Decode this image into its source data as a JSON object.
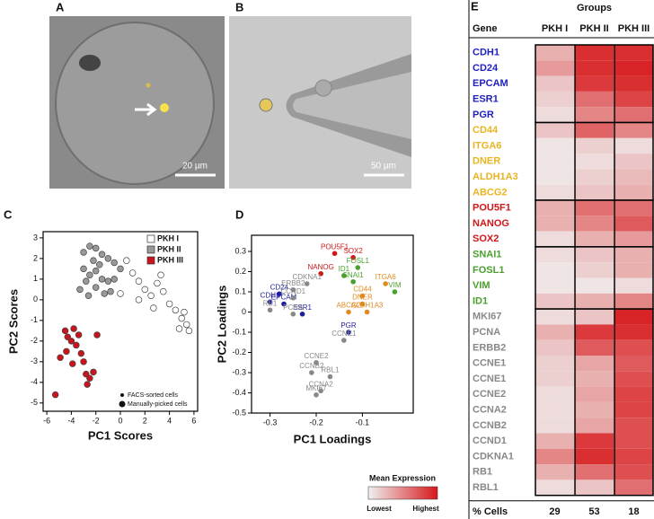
{
  "panel_labels": [
    "A",
    "B",
    "C",
    "D",
    "E"
  ],
  "images": [
    {
      "scale_bar": "20 µm"
    },
    {
      "scale_bar": "50 µm"
    }
  ],
  "chart_data": [
    {
      "type": "scatter",
      "xlabel": "PC1 Scores",
      "ylabel": "PC2 Scores",
      "xlim": [
        -6.3,
        6.3
      ],
      "ylim": [
        -5.4,
        3.3
      ],
      "xticks": [
        -6,
        -4,
        -2,
        0,
        2,
        4,
        6
      ],
      "yticks": [
        3,
        2,
        1,
        0,
        -1,
        -2,
        -3,
        -4,
        -5
      ],
      "legend": "upper right",
      "legend_notes": [
        "FACS-sorted cells",
        "Manually-picked cells"
      ],
      "series": [
        {
          "name": "PKH I",
          "color": "#ffffff",
          "x": [
            0.5,
            1,
            1.5,
            2,
            2.5,
            3,
            3.5,
            4,
            4.5,
            5,
            5.4,
            5.6,
            4.8,
            3.3,
            0,
            1.5,
            2.7,
            5.2
          ],
          "y": [
            1.9,
            1.3,
            0.9,
            0.5,
            0.2,
            0.8,
            0.4,
            -0.2,
            -0.5,
            -0.9,
            -1.2,
            -1.5,
            -1.4,
            1.2,
            0.3,
            0,
            -0.4,
            -0.6
          ]
        },
        {
          "name": "PKH II",
          "color": "#999999",
          "x": [
            -3,
            -2.5,
            -2,
            -1.5,
            -1,
            -0.5,
            -3,
            -2.5,
            -2,
            -1.5,
            -1,
            -0.5,
            0,
            -3.3,
            -2.6,
            -2,
            -1.3,
            -0.8,
            -2.2,
            -1.7,
            -2.8
          ],
          "y": [
            2.3,
            2.6,
            2.5,
            2.2,
            2,
            1.8,
            1.5,
            1.2,
            1.4,
            1,
            0.9,
            1,
            1.5,
            0.5,
            0.2,
            0.6,
            0.3,
            0.4,
            1.9,
            1.7,
            0.9
          ]
        },
        {
          "name": "PKH III",
          "color": "#c8141c",
          "x": [
            -5.3,
            -4.9,
            -4.5,
            -4.3,
            -4,
            -3.8,
            -3.6,
            -3.4,
            -3.2,
            -3,
            -2.8,
            -2.5,
            -2.2,
            -2.7,
            -1.9,
            -3.9,
            -4.4
          ],
          "y": [
            -4.6,
            -2.8,
            -1.5,
            -1.8,
            -2,
            -1.4,
            -2.2,
            -1.7,
            -2.6,
            -3,
            -3.6,
            -3.8,
            -3.5,
            -4.1,
            -1.7,
            -3.1,
            -2.5
          ]
        }
      ]
    },
    {
      "type": "scatter",
      "xlabel": "PC1 Loadings",
      "ylabel": "PC2 Loadings",
      "xlim": [
        -0.34,
        0.01
      ],
      "ylim": [
        -0.5,
        0.38
      ],
      "xticks": [
        -0.3,
        -0.2,
        -0.1
      ],
      "yticks": [
        0.3,
        0.2,
        0.1,
        0,
        -0.1,
        -0.2,
        -0.3,
        -0.4,
        -0.5
      ],
      "series": [
        {
          "color": "#1f1f9c",
          "labels": [
            "CD24",
            "CDH1",
            "EPCAM",
            "ESR1",
            "PGR"
          ],
          "x": [
            -0.28,
            -0.3,
            -0.27,
            -0.23,
            -0.13
          ],
          "y": [
            0.09,
            0.05,
            0.04,
            -0.01,
            -0.1
          ]
        },
        {
          "color": "#e08a1e",
          "labels": [
            "ITGA6",
            "CD44",
            "DNER",
            "ABCG2",
            "ALDH1A3"
          ],
          "x": [
            -0.05,
            -0.1,
            -0.1,
            -0.13,
            -0.09
          ],
          "y": [
            0.14,
            0.08,
            0.04,
            0.0,
            0.0
          ]
        },
        {
          "color": "#d01818",
          "labels": [
            "POU5F1",
            "SOX2",
            "NANOG"
          ],
          "x": [
            -0.16,
            -0.12,
            -0.19
          ],
          "y": [
            0.29,
            0.27,
            0.19
          ]
        },
        {
          "color": "#4aa02c",
          "labels": [
            "FOSL1",
            "ID1",
            "SNAI1",
            "VIM"
          ],
          "x": [
            -0.11,
            -0.14,
            -0.12,
            -0.03
          ],
          "y": [
            0.22,
            0.18,
            0.15,
            0.1
          ]
        },
        {
          "color": "#888888",
          "labels": [
            "CDKNA1",
            "ERBB2",
            "CCND1",
            "RB1",
            "PCNA",
            "CCNE1",
            "CCNE2",
            "CCNB2",
            "RBL1",
            "CCNA2",
            "MKI67"
          ],
          "x": [
            -0.22,
            -0.25,
            -0.25,
            -0.3,
            -0.25,
            -0.14,
            -0.2,
            -0.21,
            -0.17,
            -0.19,
            -0.2
          ],
          "y": [
            0.14,
            0.11,
            0.07,
            0.01,
            -0.01,
            -0.14,
            -0.25,
            -0.3,
            -0.32,
            -0.39,
            -0.41
          ]
        }
      ]
    },
    {
      "type": "heatmap",
      "title": "Groups",
      "header_left": "Gene",
      "columns": [
        "PKH I",
        "PKH II",
        "PKH III"
      ],
      "zlim": [
        0,
        1
      ],
      "low_color": "#f0f0f0",
      "high_color": "#d7191c",
      "colorbar": {
        "title": "Mean Expression",
        "low_label": "Lowest",
        "high_label": "Highest"
      },
      "footer_label": "% Cells",
      "footer_values": [
        29,
        53,
        18
      ],
      "row_groups": [
        {
          "color": "#1f1fbf",
          "genes": [
            "CDH1",
            "CD24",
            "EPCAM",
            "ESR1",
            "PGR"
          ],
          "values": [
            [
              0.3,
              0.9,
              0.9
            ],
            [
              0.4,
              0.9,
              0.95
            ],
            [
              0.2,
              0.85,
              0.9
            ],
            [
              0.15,
              0.6,
              0.8
            ],
            [
              0.1,
              0.5,
              0.6
            ]
          ]
        },
        {
          "color": "#e8b422",
          "genes": [
            "CD44",
            "ITGA6",
            "DNER",
            "ALDH1A3",
            "ABCG2"
          ],
          "values": [
            [
              0.2,
              0.65,
              0.5
            ],
            [
              0.05,
              0.15,
              0.1
            ],
            [
              0.05,
              0.1,
              0.2
            ],
            [
              0.05,
              0.15,
              0.25
            ],
            [
              0.1,
              0.2,
              0.3
            ]
          ]
        },
        {
          "color": "#d01818",
          "genes": [
            "POU5F1",
            "NANOG",
            "SOX2"
          ],
          "values": [
            [
              0.3,
              0.6,
              0.6
            ],
            [
              0.3,
              0.5,
              0.7
            ],
            [
              0.1,
              0.3,
              0.4
            ]
          ]
        },
        {
          "color": "#4aa02c",
          "genes": [
            "SNAI1",
            "FOSL1",
            "VIM",
            "ID1"
          ],
          "values": [
            [
              0.1,
              0.2,
              0.3
            ],
            [
              0.05,
              0.15,
              0.3
            ],
            [
              0.05,
              0.05,
              0.1
            ],
            [
              0.2,
              0.3,
              0.5
            ]
          ]
        },
        {
          "color": "#888888",
          "genes": [
            "MKI67",
            "PCNA",
            "ERBB2",
            "CCNE1",
            "CCNE1",
            "CCNE2",
            "CCNA2",
            "CCNB2",
            "CCND1",
            "CDKNA1",
            "RB1",
            "RBL1"
          ],
          "values": [
            [
              0.1,
              0.2,
              0.95
            ],
            [
              0.3,
              0.85,
              0.9
            ],
            [
              0.2,
              0.7,
              0.75
            ],
            [
              0.15,
              0.35,
              0.7
            ],
            [
              0.15,
              0.3,
              0.75
            ],
            [
              0.1,
              0.35,
              0.8
            ],
            [
              0.1,
              0.3,
              0.8
            ],
            [
              0.1,
              0.35,
              0.75
            ],
            [
              0.3,
              0.85,
              0.75
            ],
            [
              0.5,
              0.9,
              0.8
            ],
            [
              0.3,
              0.6,
              0.75
            ],
            [
              0.1,
              0.2,
              0.6
            ]
          ]
        }
      ]
    }
  ]
}
